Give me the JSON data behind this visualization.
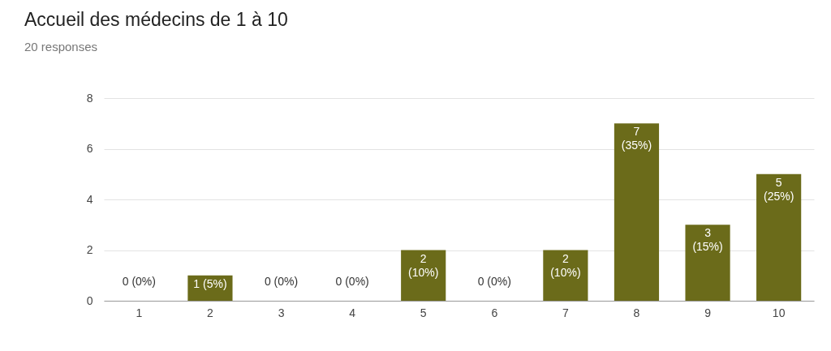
{
  "chart_data": {
    "type": "bar",
    "title": "Accueil des médecins de 1 à 10",
    "subtitle": "20 responses",
    "categories": [
      "1",
      "2",
      "3",
      "4",
      "5",
      "6",
      "7",
      "8",
      "9",
      "10"
    ],
    "values": [
      0,
      1,
      0,
      0,
      2,
      0,
      2,
      7,
      3,
      5
    ],
    "value_labels": [
      "0 (0%)",
      "1 (5%)",
      "0 (0%)",
      "0 (0%)",
      "2 (10%)",
      "0 (0%)",
      "2 (10%)",
      "7 (35%)",
      "3 (15%)",
      "5 (25%)"
    ],
    "color": "#6b6b1a",
    "ylim": [
      0,
      8
    ],
    "yticks": [
      0,
      2,
      4,
      6,
      8
    ],
    "grid": "y"
  }
}
